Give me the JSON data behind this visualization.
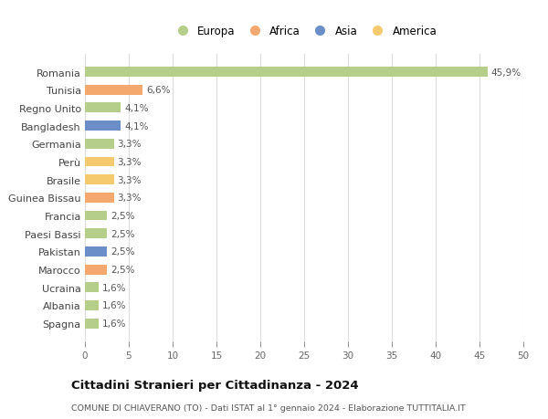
{
  "title": "Cittadini Stranieri per Cittadinanza - 2024",
  "subtitle": "COMUNE DI CHIAVERANO (TO) - Dati ISTAT al 1° gennaio 2024 - Elaborazione TUTTITALIA.IT",
  "categories": [
    "Spagna",
    "Albania",
    "Ucraina",
    "Marocco",
    "Pakistan",
    "Paesi Bassi",
    "Francia",
    "Guinea Bissau",
    "Brasile",
    "Perù",
    "Germania",
    "Bangladesh",
    "Regno Unito",
    "Tunisia",
    "Romania"
  ],
  "values": [
    1.6,
    1.6,
    1.6,
    2.5,
    2.5,
    2.5,
    2.5,
    3.3,
    3.3,
    3.3,
    3.3,
    4.1,
    4.1,
    6.6,
    45.9
  ],
  "labels": [
    "1,6%",
    "1,6%",
    "1,6%",
    "2,5%",
    "2,5%",
    "2,5%",
    "2,5%",
    "3,3%",
    "3,3%",
    "3,3%",
    "3,3%",
    "4,1%",
    "4,1%",
    "6,6%",
    "45,9%"
  ],
  "colors": [
    "#b5cf8a",
    "#b5cf8a",
    "#b5cf8a",
    "#f5a86e",
    "#6b8ec9",
    "#b5cf8a",
    "#b5cf8a",
    "#f5a86e",
    "#f5c96e",
    "#f5c96e",
    "#b5cf8a",
    "#6b8ec9",
    "#b5cf8a",
    "#f5a86e",
    "#b5cf8a"
  ],
  "legend_labels": [
    "Europa",
    "Africa",
    "Asia",
    "America"
  ],
  "legend_colors": [
    "#b5cf8a",
    "#f5a86e",
    "#6b8ec9",
    "#f5c96e"
  ],
  "xlim": [
    0,
    50
  ],
  "xticks": [
    0,
    5,
    10,
    15,
    20,
    25,
    30,
    35,
    40,
    45,
    50
  ],
  "background_color": "#ffffff",
  "grid_color": "#dddddd",
  "bar_height": 0.55
}
